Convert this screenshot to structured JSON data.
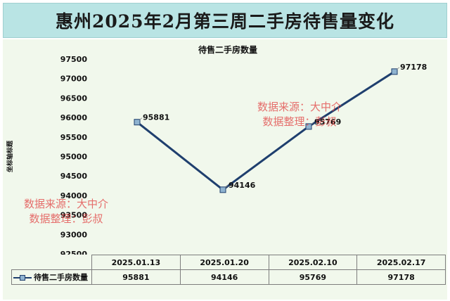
{
  "banner": {
    "title": "惠州2025年2月第三周二手房待售量变化"
  },
  "watermarks": [
    {
      "lines": [
        "数据来源：大中介",
        "数据整理：彭叔"
      ]
    },
    {
      "lines": [
        "数据来源：大中介",
        "数据整理：彭叔"
      ]
    }
  ],
  "colors": {
    "line": "#1f3f6e",
    "marker_fill": "#8fb3d0",
    "banner_bg": "#b9e4e4",
    "plot_bg": "#f1f8ec",
    "watermark": "#e14646"
  },
  "chart_data": {
    "type": "line",
    "title": "待售二手房数量",
    "ylabel": "坐标轴标题",
    "xlabel": "",
    "categories": [
      "2025.01.13",
      "2025.01.20",
      "2025.02.10",
      "2025.02.17"
    ],
    "series": [
      {
        "name": "待售二手房数量",
        "values": [
          95881,
          94146,
          95769,
          97178
        ]
      }
    ],
    "ylim": [
      92500,
      97500
    ],
    "yticks": [
      92500,
      93000,
      93500,
      94000,
      94500,
      95000,
      95500,
      96000,
      96500,
      97000,
      97500
    ],
    "grid": false,
    "legend": "data-table-left",
    "data_labels": true,
    "data_table": true
  }
}
